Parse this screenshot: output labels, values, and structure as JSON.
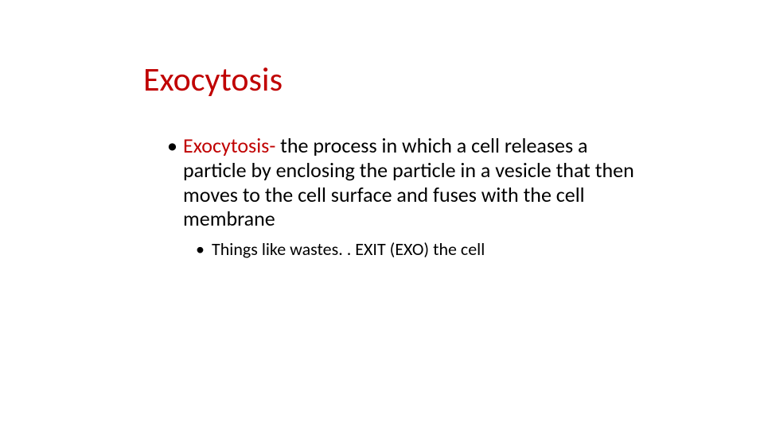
{
  "slide": {
    "background_color": "#ffffff",
    "title": {
      "text": "Exocytosis",
      "color": "#c00000",
      "fontsize_pt": 40,
      "font_weight": 400
    },
    "body": {
      "level1": {
        "term": "Exocytosis- ",
        "term_color": "#c00000",
        "definition": "the process in which a cell releases a particle by enclosing the particle in a vesicle that then moves to the cell surface and fuses with the cell membrane",
        "text_color": "#000000",
        "fontsize_pt": 26
      },
      "level2": {
        "text": "Things like wastes. . EXIT (EXO) the cell",
        "text_color": "#000000",
        "fontsize_pt": 22
      }
    }
  }
}
